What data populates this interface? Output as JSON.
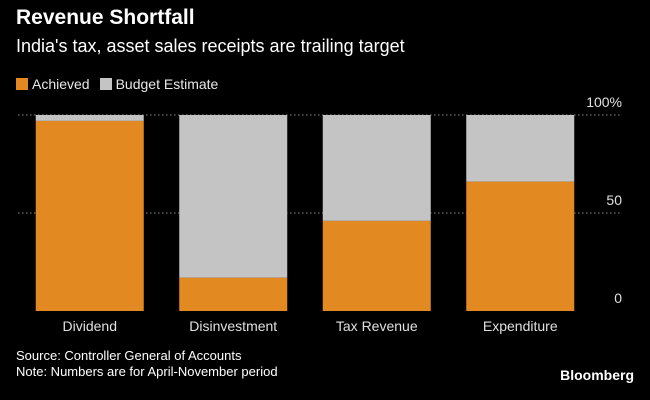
{
  "header": {
    "title": "Revenue Shortfall",
    "subtitle": "India's tax, asset sales receipts are trailing target"
  },
  "footer": {
    "source": "Source: Controller General of Accounts",
    "note": "Note: Numbers are for April-November period",
    "brand": "Bloomberg"
  },
  "colors": {
    "achieved": "#e28a21",
    "budget": "#c4c4c4",
    "gridline": "#888888",
    "axis_text": "#e0e0e0"
  },
  "chart_data": {
    "type": "bar",
    "stacked": true,
    "categories": [
      "Dividend",
      "Disinvestment",
      "Tax Revenue",
      "Expenditure"
    ],
    "series": [
      {
        "name": "Achieved",
        "values": [
          97,
          17,
          46,
          66
        ]
      },
      {
        "name": "Budget Estimate",
        "values": [
          3,
          83,
          54,
          34
        ]
      }
    ],
    "yticks": [
      0,
      50,
      100
    ],
    "ytick_labels": [
      "0",
      "50",
      "100%"
    ],
    "ylim": [
      0,
      100
    ],
    "legend_position": "top-left",
    "grid": true
  }
}
